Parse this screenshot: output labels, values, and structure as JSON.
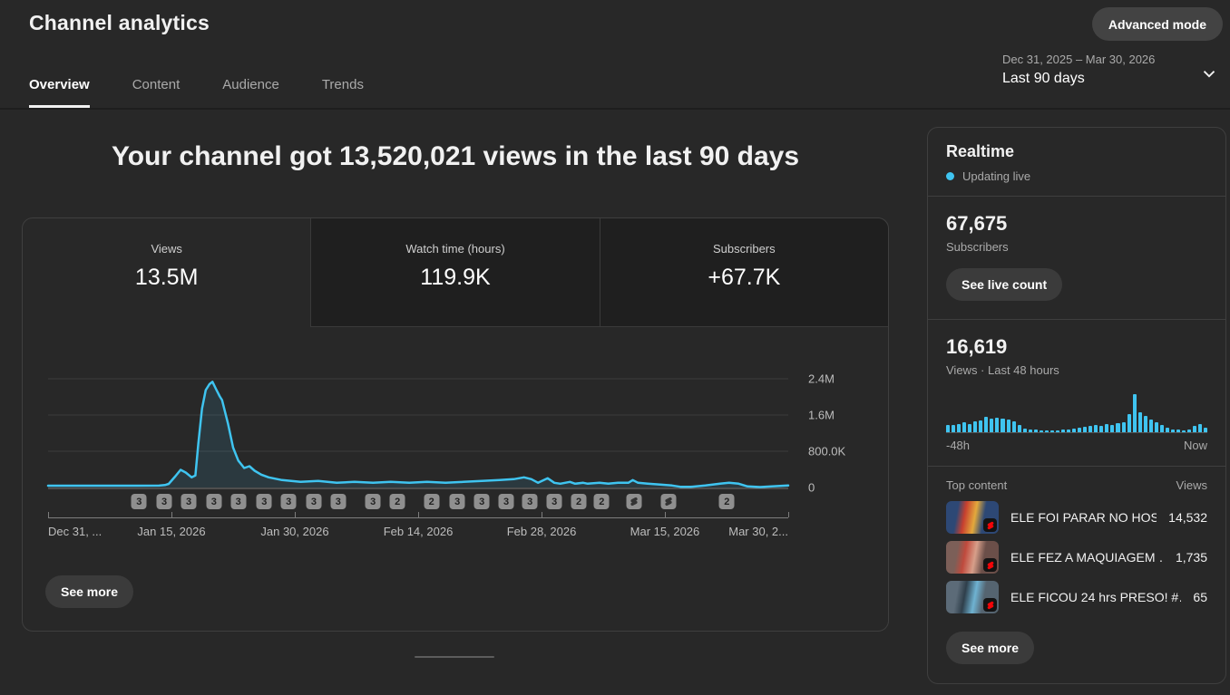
{
  "header": {
    "title": "Channel analytics",
    "advanced_mode_label": "Advanced mode",
    "tabs": [
      {
        "label": "Overview",
        "active": true
      },
      {
        "label": "Content",
        "active": false
      },
      {
        "label": "Audience",
        "active": false
      },
      {
        "label": "Trends",
        "active": false
      }
    ],
    "date_range": "Dec 31, 2025 – Mar 30, 2026",
    "date_preset": "Last 90 days"
  },
  "main": {
    "headline": "Your channel got 13,520,021 views in the last 90 days",
    "metric_tabs": [
      {
        "label": "Views",
        "value": "13.5M",
        "active": true
      },
      {
        "label": "Watch time (hours)",
        "value": "119.9K",
        "active": false
      },
      {
        "label": "Subscribers",
        "value": "+67.7K",
        "active": false
      }
    ],
    "see_more_label": "See more"
  },
  "chart_data": {
    "type": "line",
    "title": "Daily views over the last 90 days",
    "y_unit": "views",
    "ylim": [
      0,
      2760000
    ],
    "grid": "horizontal",
    "y_ticks": [
      {
        "value": 2400000,
        "label": "2.4M"
      },
      {
        "value": 1600000,
        "label": "1.6M"
      },
      {
        "value": 800000,
        "label": "800.0K"
      },
      {
        "value": 0,
        "label": "0"
      }
    ],
    "x_ticks": [
      {
        "pct": 0,
        "label": "Dec 31, ..."
      },
      {
        "pct": 16.67,
        "label": "Jan 15, 2026"
      },
      {
        "pct": 33.33,
        "label": "Jan 30, 2026"
      },
      {
        "pct": 50,
        "label": "Feb 14, 2026"
      },
      {
        "pct": 66.67,
        "label": "Feb 28, 2026"
      },
      {
        "pct": 83.33,
        "label": "Mar 15, 2026"
      },
      {
        "pct": 100,
        "label": "Mar 30, 2..."
      }
    ],
    "series": [
      {
        "name": "Views",
        "points": [
          [
            0,
            40000
          ],
          [
            4,
            40000
          ],
          [
            8,
            40000
          ],
          [
            12,
            40000
          ],
          [
            15,
            42000
          ],
          [
            15.8,
            55000
          ],
          [
            16.3,
            80000
          ],
          [
            17.2,
            250000
          ],
          [
            17.9,
            390000
          ],
          [
            18.6,
            330000
          ],
          [
            19.4,
            225000
          ],
          [
            19.9,
            265000
          ],
          [
            20.3,
            960000
          ],
          [
            20.8,
            1740000
          ],
          [
            21.3,
            2150000
          ],
          [
            21.8,
            2280000
          ],
          [
            22.2,
            2335000
          ],
          [
            22.7,
            2170000
          ],
          [
            23.2,
            2010000
          ],
          [
            23.5,
            1930000
          ],
          [
            24.3,
            1415000
          ],
          [
            25,
            880000
          ],
          [
            25.7,
            595000
          ],
          [
            26.5,
            430000
          ],
          [
            27.2,
            470000
          ],
          [
            27.9,
            370000
          ],
          [
            28.8,
            285000
          ],
          [
            29.8,
            225000
          ],
          [
            31.6,
            165000
          ],
          [
            34.1,
            125000
          ],
          [
            36.5,
            145000
          ],
          [
            39,
            105000
          ],
          [
            41.4,
            125000
          ],
          [
            43.9,
            105000
          ],
          [
            46.3,
            125000
          ],
          [
            48.8,
            105000
          ],
          [
            51.2,
            125000
          ],
          [
            53.7,
            105000
          ],
          [
            56.1,
            125000
          ],
          [
            58.6,
            145000
          ],
          [
            61,
            165000
          ],
          [
            62.9,
            185000
          ],
          [
            64.3,
            225000
          ],
          [
            65.3,
            185000
          ],
          [
            66.2,
            105000
          ],
          [
            67.5,
            205000
          ],
          [
            68.4,
            105000
          ],
          [
            69.2,
            85000
          ],
          [
            70.5,
            125000
          ],
          [
            71.2,
            85000
          ],
          [
            72.3,
            105000
          ],
          [
            72.9,
            85000
          ],
          [
            74.5,
            105000
          ],
          [
            75.7,
            85000
          ],
          [
            77,
            105000
          ],
          [
            78.4,
            105000
          ],
          [
            79,
            165000
          ],
          [
            79.7,
            105000
          ],
          [
            81,
            85000
          ],
          [
            82.7,
            65000
          ],
          [
            84.3,
            45000
          ],
          [
            85.5,
            15000
          ],
          [
            86.8,
            15000
          ],
          [
            88.8,
            45000
          ],
          [
            90.8,
            85000
          ],
          [
            92,
            105000
          ],
          [
            93.3,
            85000
          ],
          [
            94.5,
            25000
          ],
          [
            96.2,
            10000
          ],
          [
            97.8,
            25000
          ],
          [
            100,
            45000
          ]
        ]
      }
    ],
    "upload_markers": [
      {
        "x_pct": 12.3,
        "label": "3"
      },
      {
        "x_pct": 15.7,
        "label": "3"
      },
      {
        "x_pct": 19.0,
        "label": "3"
      },
      {
        "x_pct": 22.4,
        "label": "3"
      },
      {
        "x_pct": 25.7,
        "label": "3"
      },
      {
        "x_pct": 29.2,
        "label": "3"
      },
      {
        "x_pct": 32.5,
        "label": "3"
      },
      {
        "x_pct": 35.9,
        "label": "3"
      },
      {
        "x_pct": 39.2,
        "label": "3"
      },
      {
        "x_pct": 43.9,
        "label": "3"
      },
      {
        "x_pct": 47.2,
        "label": "2"
      },
      {
        "x_pct": 51.8,
        "label": "2"
      },
      {
        "x_pct": 55.3,
        "label": "3"
      },
      {
        "x_pct": 58.6,
        "label": "3"
      },
      {
        "x_pct": 61.9,
        "label": "3"
      },
      {
        "x_pct": 65.1,
        "label": "3"
      },
      {
        "x_pct": 68.4,
        "label": "3"
      },
      {
        "x_pct": 71.7,
        "label": "2"
      },
      {
        "x_pct": 74.8,
        "label": "2"
      },
      {
        "x_pct": 79.2,
        "icon": "shorts"
      },
      {
        "x_pct": 83.8,
        "icon": "shorts"
      },
      {
        "x_pct": 91.7,
        "label": "2"
      }
    ]
  },
  "realtime": {
    "title": "Realtime",
    "status_label": "Updating live",
    "subscribers_value": "67,675",
    "subscribers_label": "Subscribers",
    "live_count_button": "See live count",
    "views_value": "16,619",
    "views_label": "Views · Last 48 hours",
    "axis_left": "-48h",
    "axis_right": "Now",
    "bars_chart": {
      "type": "bar",
      "unit": "relative_hourly_views",
      "values": [
        0.18,
        0.2,
        0.22,
        0.25,
        0.22,
        0.28,
        0.32,
        0.4,
        0.36,
        0.38,
        0.36,
        0.33,
        0.28,
        0.18,
        0.1,
        0.07,
        0.06,
        0.05,
        0.05,
        0.05,
        0.05,
        0.06,
        0.08,
        0.1,
        0.12,
        0.14,
        0.17,
        0.19,
        0.17,
        0.21,
        0.19,
        0.24,
        0.27,
        0.48,
        1.0,
        0.52,
        0.43,
        0.33,
        0.27,
        0.19,
        0.11,
        0.08,
        0.06,
        0.05,
        0.08,
        0.17,
        0.21,
        0.11
      ]
    },
    "top_content_label": "Top content",
    "views_column_label": "Views",
    "top_content": [
      {
        "title": "ELE FOI PARAR NO HOS…",
        "views": "14,532",
        "badge": "shorts",
        "thumb_colors": [
          "#2d4875",
          "#c8402f",
          "#e3a93c",
          "#2d4875"
        ]
      },
      {
        "title": "ELE FEZ A MAQUIAGEM …",
        "views": "1,735",
        "badge": "shorts",
        "thumb_colors": [
          "#7c5f58",
          "#c04a3d",
          "#d79f8a",
          "#6b4f49"
        ]
      },
      {
        "title": "ELE FICOU 24 hrs PRESO! #…",
        "views": "65",
        "badge": "shorts",
        "thumb_colors": [
          "#5c6b78",
          "#2f3f4b",
          "#6fb3d2",
          "#556470"
        ]
      }
    ],
    "see_more_label": "See more"
  },
  "colors": {
    "accent": "#3fc4f0",
    "page_bg": "#282828",
    "card_border": "#3f3f3f",
    "grid_line": "#3c3c3c",
    "zero_line": "#757575",
    "chip_bg": "#8f8f8f",
    "chip_text": "#212121",
    "shorts_red": "#f40407",
    "muted_text": "#aaaaaa"
  }
}
